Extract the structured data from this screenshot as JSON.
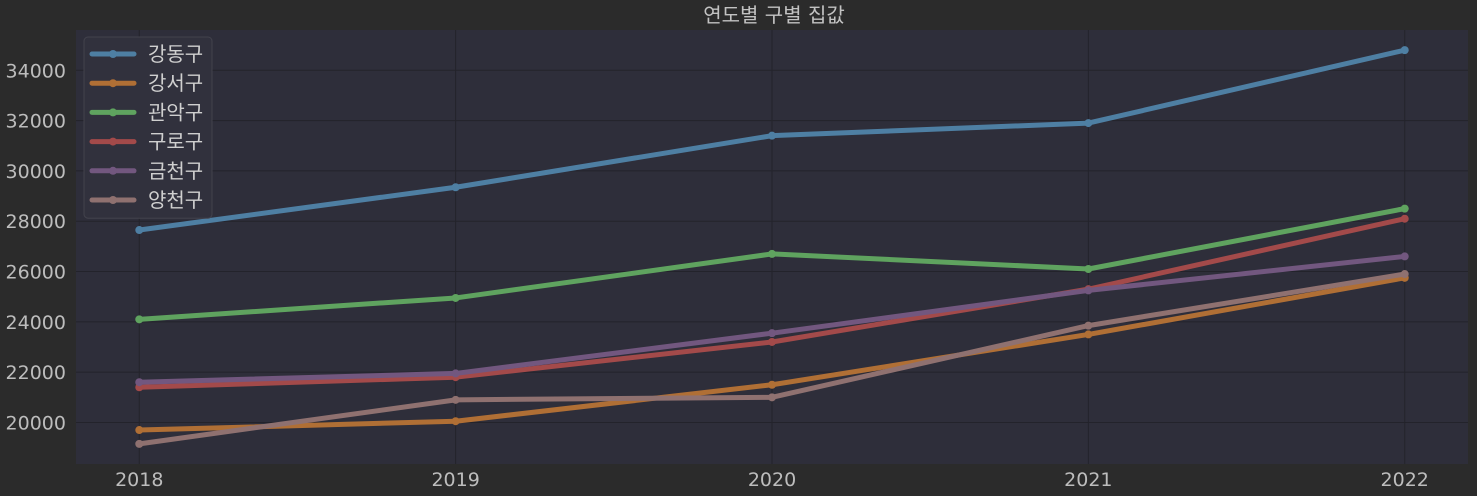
{
  "chart_data": {
    "type": "line",
    "title": "연도별 구별 집값",
    "xlabel": "",
    "ylabel": "",
    "x": [
      2018,
      2019,
      2020,
      2021,
      2022
    ],
    "x_tick_labels": [
      "2018",
      "2019",
      "2020",
      "2021",
      "2022"
    ],
    "y_ticks": [
      20000,
      22000,
      24000,
      26000,
      28000,
      30000,
      32000,
      34000
    ],
    "y_tick_labels": [
      "20000",
      "22000",
      "24000",
      "26000",
      "28000",
      "30000",
      "32000",
      "34000"
    ],
    "xlim": [
      2017.8,
      2022.2
    ],
    "ylim": [
      18350,
      35600
    ],
    "grid": true,
    "legend_position": "top-left",
    "series": [
      {
        "name": "강동구",
        "color": "#4e7fa3",
        "values": [
          27650,
          29350,
          31400,
          31900,
          34800
        ]
      },
      {
        "name": "강서구",
        "color": "#b06f35",
        "values": [
          19700,
          20050,
          21500,
          23500,
          25750
        ]
      },
      {
        "name": "관악구",
        "color": "#5fa35f",
        "values": [
          24100,
          24950,
          26700,
          26100,
          28500
        ]
      },
      {
        "name": "구로구",
        "color": "#a34a4a",
        "values": [
          21400,
          21800,
          23200,
          25300,
          28100
        ]
      },
      {
        "name": "금천구",
        "color": "#72577f",
        "values": [
          21600,
          21950,
          23550,
          25250,
          26600
        ]
      },
      {
        "name": "양천구",
        "color": "#8f7170",
        "values": [
          19150,
          20900,
          21000,
          23850,
          25900
        ]
      }
    ]
  }
}
